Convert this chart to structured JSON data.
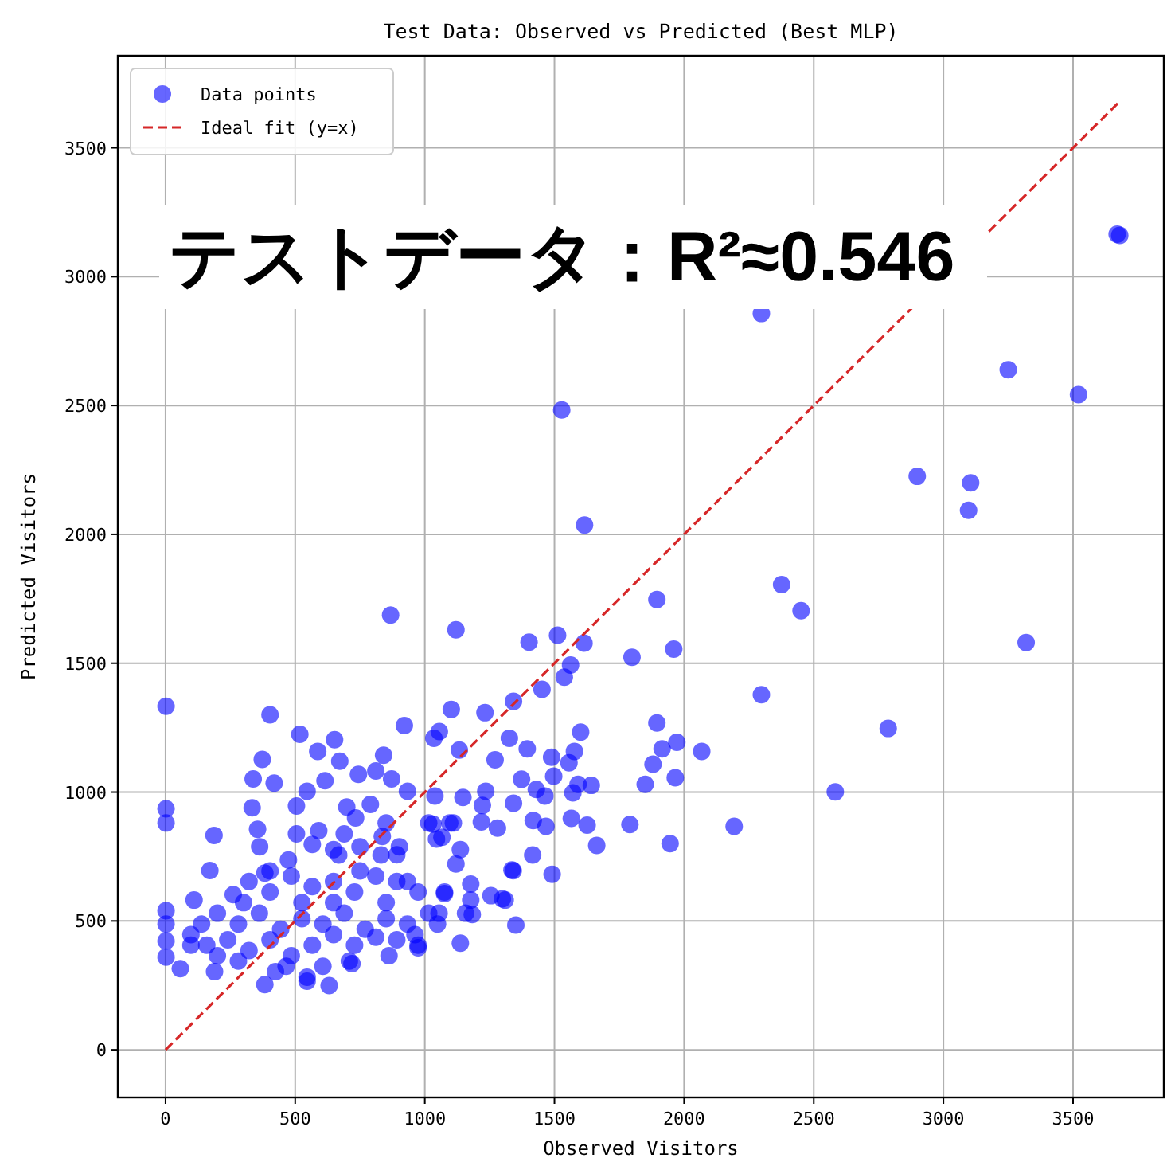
{
  "chart_data": {
    "type": "scatter",
    "title": "Test Data: Observed vs Predicted (Best MLP)",
    "xlabel": "Observed Visitors",
    "ylabel": "Predicted Visitors",
    "xlim": [
      -184,
      3850
    ],
    "ylim": [
      -185,
      3857
    ],
    "xticks": [
      0,
      500,
      1000,
      1500,
      2000,
      2500,
      3000,
      3500
    ],
    "yticks": [
      0,
      500,
      1000,
      1500,
      2000,
      2500,
      3000,
      3500
    ],
    "grid": true,
    "legend": "top left",
    "annotations": [
      "テストデータ：R²≈0.546"
    ],
    "series": [
      {
        "name": "Data points",
        "color": "#0000ff",
        "marker": "circle",
        "x": [
          3670,
          3680,
          2298,
          3250,
          3521,
          2899,
          3105,
          3097,
          2376,
          2451,
          3319,
          2298,
          2787,
          2068,
          2583,
          2193,
          1528,
          1616,
          1895,
          1120,
          1402,
          1512,
          1614,
          1799,
          1960,
          1562,
          1538,
          1452,
          1342,
          1102,
          1232,
          921,
          1895,
          1601,
          1326,
          1035,
          1915,
          1972,
          1577,
          1395,
          1133,
          1271,
          1489,
          1556,
          1880,
          1966,
          1850,
          1373,
          1497,
          1591,
          1642,
          1430,
          1463,
          1571,
          1235,
          1147,
          1039,
          933,
          1342,
          1222,
          1110,
          1031,
          1218,
          1280,
          1418,
          1467,
          1565,
          1626,
          1663,
          1791,
          1946,
          1066,
          1120,
          1416,
          1336,
          1491,
          1255,
          1299,
          1177,
          1076,
          1157,
          2,
          403,
          868,
          518,
          652,
          587,
          373,
          672,
          338,
          419,
          744,
          841,
          615,
          546,
          811,
          872,
          2,
          2,
          334,
          187,
          505,
          699,
          790,
          733,
          355,
          591,
          836,
          902,
          363,
          648,
          171,
          383,
          474,
          750,
          892,
          1045,
          1015,
          1056,
          110,
          2,
          2,
          2,
          2,
          57,
          98,
          189,
          383,
          546,
          631,
          424,
          719,
          862,
          974,
          1137,
          1351,
          1183,
          1310,
          1341,
          1049,
          962,
          261,
          322,
          403,
          485,
          566,
          648,
          729,
          811,
          892,
          974,
          200,
          281,
          362,
          444,
          526,
          607,
          689,
          770,
          851,
          933,
          1015,
          240,
          322,
          403,
          485,
          566,
          648,
          729,
          811,
          892,
          974,
          281,
          465,
          607,
          709,
          546,
          139,
          98,
          159,
          200,
          301,
          403,
          526,
          648,
          750,
          851,
          933,
          1076,
          1177,
          1055,
          668,
          566,
          505,
          689,
          831,
          851,
          1096,
          1137
        ],
        "values": [
          3165,
          3160,
          2857,
          2639,
          2542,
          2225,
          2200,
          2093,
          1805,
          1704,
          1580,
          1378,
          1247,
          1158,
          1001,
          867,
          2483,
          2036,
          1747,
          1630,
          1582,
          1609,
          1578,
          1523,
          1555,
          1493,
          1446,
          1399,
          1352,
          1321,
          1308,
          1258,
          1268,
          1233,
          1209,
          1209,
          1168,
          1193,
          1158,
          1168,
          1163,
          1125,
          1135,
          1114,
          1108,
          1056,
          1030,
          1050,
          1062,
          1030,
          1026,
          1010,
          985,
          997,
          1003,
          979,
          985,
          1003,
          957,
          948,
          880,
          876,
          884,
          860,
          890,
          867,
          898,
          872,
          793,
          874,
          800,
          825,
          721,
          756,
          698,
          681,
          598,
          586,
          643,
          606,
          530,
          1333,
          1300,
          1687,
          1224,
          1203,
          1158,
          1127,
          1120,
          1051,
          1035,
          1069,
          1143,
          1044,
          1003,
          1082,
          1051,
          935,
          880,
          939,
          832,
          946,
          942,
          952,
          900,
          856,
          850,
          828,
          788,
          788,
          777,
          696,
          686,
          737,
          788,
          757,
          818,
          880,
          1235,
          581,
          540,
          488,
          422,
          360,
          315,
          406,
          303,
          253,
          266,
          249,
          303,
          334,
          365,
          396,
          414,
          484,
          525,
          581,
          695,
          488,
          447,
          602,
          653,
          612,
          674,
          633,
          653,
          612,
          674,
          653,
          612,
          530,
          488,
          530,
          468,
          509,
          488,
          530,
          468,
          509,
          488,
          530,
          427,
          385,
          427,
          365,
          406,
          447,
          406,
          437,
          427,
          406,
          344,
          324,
          324,
          344,
          282,
          488,
          447,
          406,
          365,
          571,
          694,
          571,
          571,
          694,
          571,
          653,
          612,
          581,
          530,
          756,
          797,
          838,
          838,
          756,
          880,
          880,
          777
        ]
      },
      {
        "name": "Ideal fit (y=x)",
        "type": "line",
        "color": "#d62728",
        "line_style": "dashed",
        "x": [
          0,
          3680
        ],
        "values": [
          0,
          3680
        ]
      }
    ]
  }
}
